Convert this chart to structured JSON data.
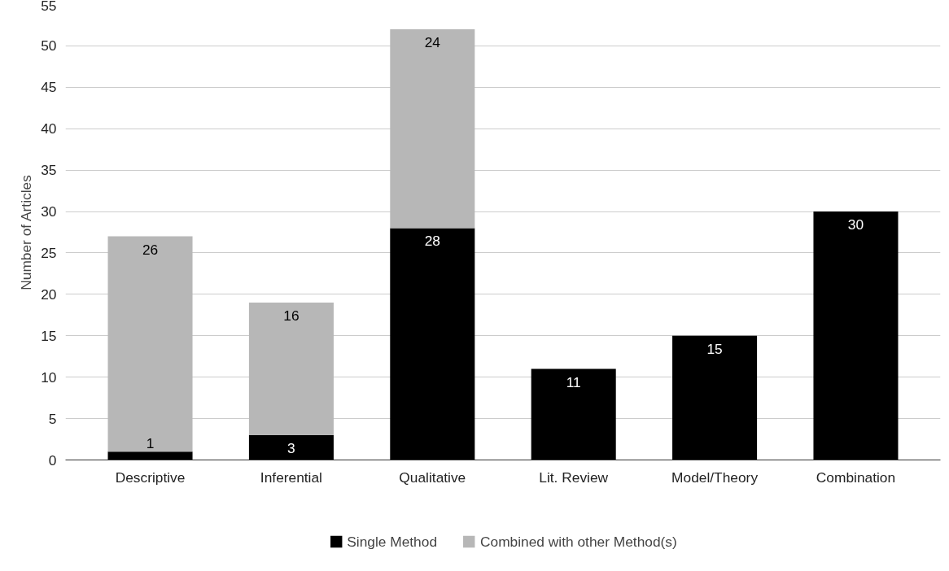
{
  "chart_data": {
    "type": "bar",
    "stacked": true,
    "categories": [
      "Descriptive",
      "Inferential",
      "Qualitative",
      "Lit. Review",
      "Model/Theory",
      "Combination"
    ],
    "series": [
      {
        "name": "Single Method",
        "color": "#000000",
        "values": [
          1,
          3,
          28,
          11,
          15,
          30
        ]
      },
      {
        "name": "Combined with other Method(s)",
        "color": "#b7b7b7",
        "values": [
          26,
          16,
          24,
          null,
          null,
          null
        ]
      }
    ],
    "ylabel": "Number of Articles",
    "ylim": [
      0,
      55
    ],
    "yticks": [
      0,
      5,
      10,
      15,
      20,
      25,
      30,
      35,
      40,
      45,
      50,
      55
    ],
    "grid": "y",
    "legend": "bottom",
    "data_labels": true
  }
}
